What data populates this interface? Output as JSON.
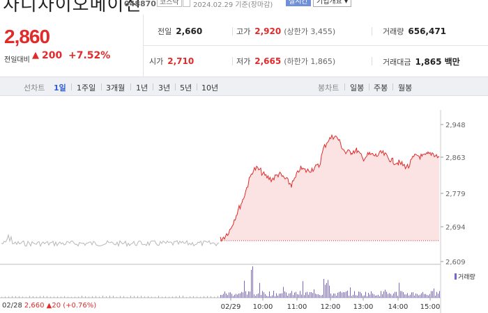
{
  "header": {
    "stock_name": "차디차이오메이진",
    "stock_code": "048870",
    "market": "코스닥",
    "date_text": "2024.02.29 기준(장마감)",
    "realtime_label": "실시간",
    "company_label": "기업개요 ▾"
  },
  "price": {
    "current": "2,860",
    "change_label": "전일대비",
    "change_arrow": "▲",
    "change_amount": "200",
    "change_pct": "+7.52%",
    "color_up": "#e12a2a"
  },
  "stats": {
    "prev_close": {
      "label": "전일",
      "value": "2,660"
    },
    "high": {
      "label": "고가",
      "value": "2,920",
      "sub": "(상한가 3,455)"
    },
    "volume": {
      "label": "거래량",
      "value": "656,471"
    },
    "open": {
      "label": "시가",
      "value": "2,710"
    },
    "low": {
      "label": "저가",
      "value": "2,665",
      "sub": "(하한가 1,865)"
    },
    "trade_value": {
      "label": "거래대금",
      "value": "1,865 백만"
    }
  },
  "period_bar": {
    "line_chart_label": "선차트",
    "periods": [
      "1일",
      "1주일",
      "3개월",
      "1년",
      "3년",
      "5년",
      "10년"
    ],
    "active_period": "1일",
    "candle_label": "봉차트",
    "candles": [
      "일봉",
      "주봉",
      "월봉"
    ]
  },
  "chart": {
    "y_ticks": [
      "2,948",
      "2,863",
      "2,779",
      "2,694",
      "2,609"
    ],
    "x_ticks": [
      "02/29",
      "10:00",
      "11:00",
      "12:00",
      "13:00",
      "14:00",
      "15:00"
    ],
    "volume_legend": "거래량",
    "prev_day": {
      "date": "02/28",
      "info": "2,660 ▲20 (+0.76%)"
    },
    "accent_line": "#e12a2a",
    "fill": "#fbe3e3",
    "prev_line": "#b8b8b8",
    "volume_color": "#7766cc"
  }
}
